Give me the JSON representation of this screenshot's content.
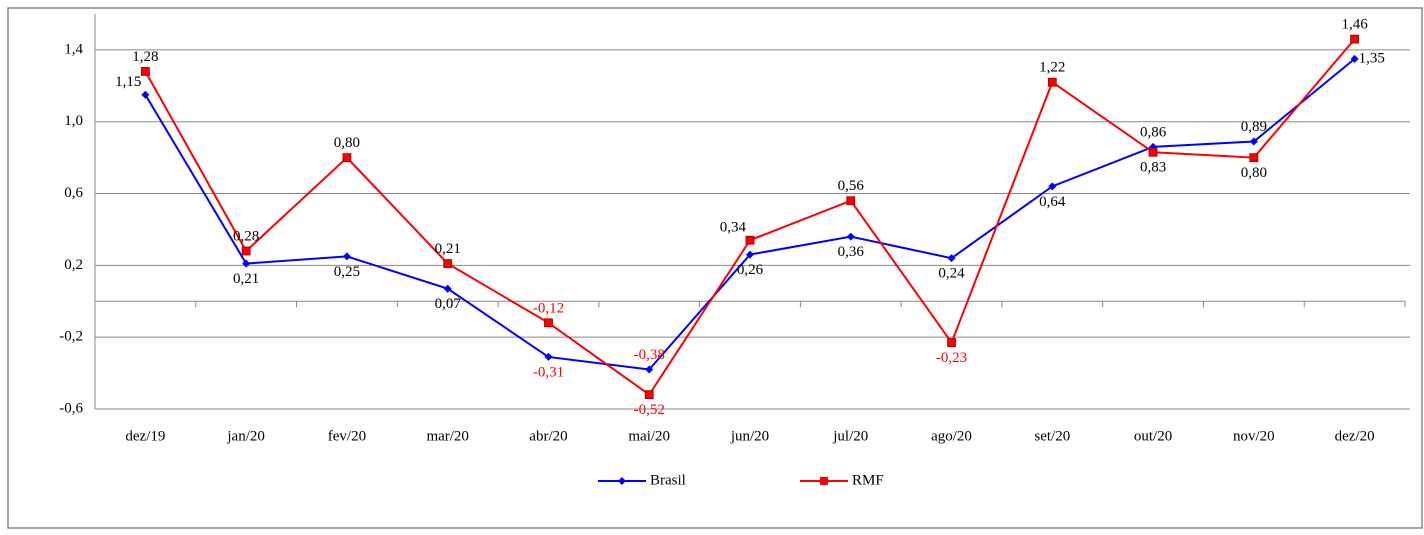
{
  "chart_data": {
    "type": "line",
    "categories": [
      "dez/19",
      "jan/20",
      "fev/20",
      "mar/20",
      "abr/20",
      "mai/20",
      "jun/20",
      "jul/20",
      "ago/20",
      "set/20",
      "out/20",
      "nov/20",
      "dez/20"
    ],
    "series": [
      {
        "name": "Brasil",
        "color": "#0000ff",
        "marker": "diamond",
        "values": [
          1.15,
          0.21,
          0.25,
          0.07,
          -0.31,
          -0.38,
          0.26,
          0.36,
          0.24,
          0.64,
          0.86,
          0.89,
          1.35
        ],
        "value_labels": [
          "1,15",
          "0,21",
          "0,25",
          "0,07",
          "-0,31",
          "-0,38",
          "0,26",
          "0,36",
          "0,24",
          "0,64",
          "0,86",
          "0,89",
          "1,35"
        ]
      },
      {
        "name": "RMF",
        "color": "#ff0000",
        "marker": "square",
        "values": [
          1.28,
          0.28,
          0.8,
          0.21,
          -0.12,
          -0.52,
          0.34,
          0.56,
          -0.23,
          1.22,
          0.83,
          0.8,
          1.46
        ],
        "value_labels": [
          "1,28",
          "0,28",
          "0,80",
          "0,21",
          "-0,12",
          "-0,52",
          "0,34",
          "0,56",
          "-0,23",
          "1,22",
          "0,83",
          "0,80",
          "1,46"
        ]
      }
    ],
    "ylim": [
      -0.6,
      1.6
    ],
    "yticks": [
      {
        "value": -0.6,
        "label": "-0,6"
      },
      {
        "value": -0.2,
        "label": "-0,2"
      },
      {
        "value": 0.2,
        "label": "0,2"
      },
      {
        "value": 0.6,
        "label": "0,6"
      },
      {
        "value": 1.0,
        "label": "1,0"
      },
      {
        "value": 1.4,
        "label": "1,4"
      }
    ],
    "grid": true,
    "legend": "bottom",
    "negative_label_color": "#ff0000"
  }
}
